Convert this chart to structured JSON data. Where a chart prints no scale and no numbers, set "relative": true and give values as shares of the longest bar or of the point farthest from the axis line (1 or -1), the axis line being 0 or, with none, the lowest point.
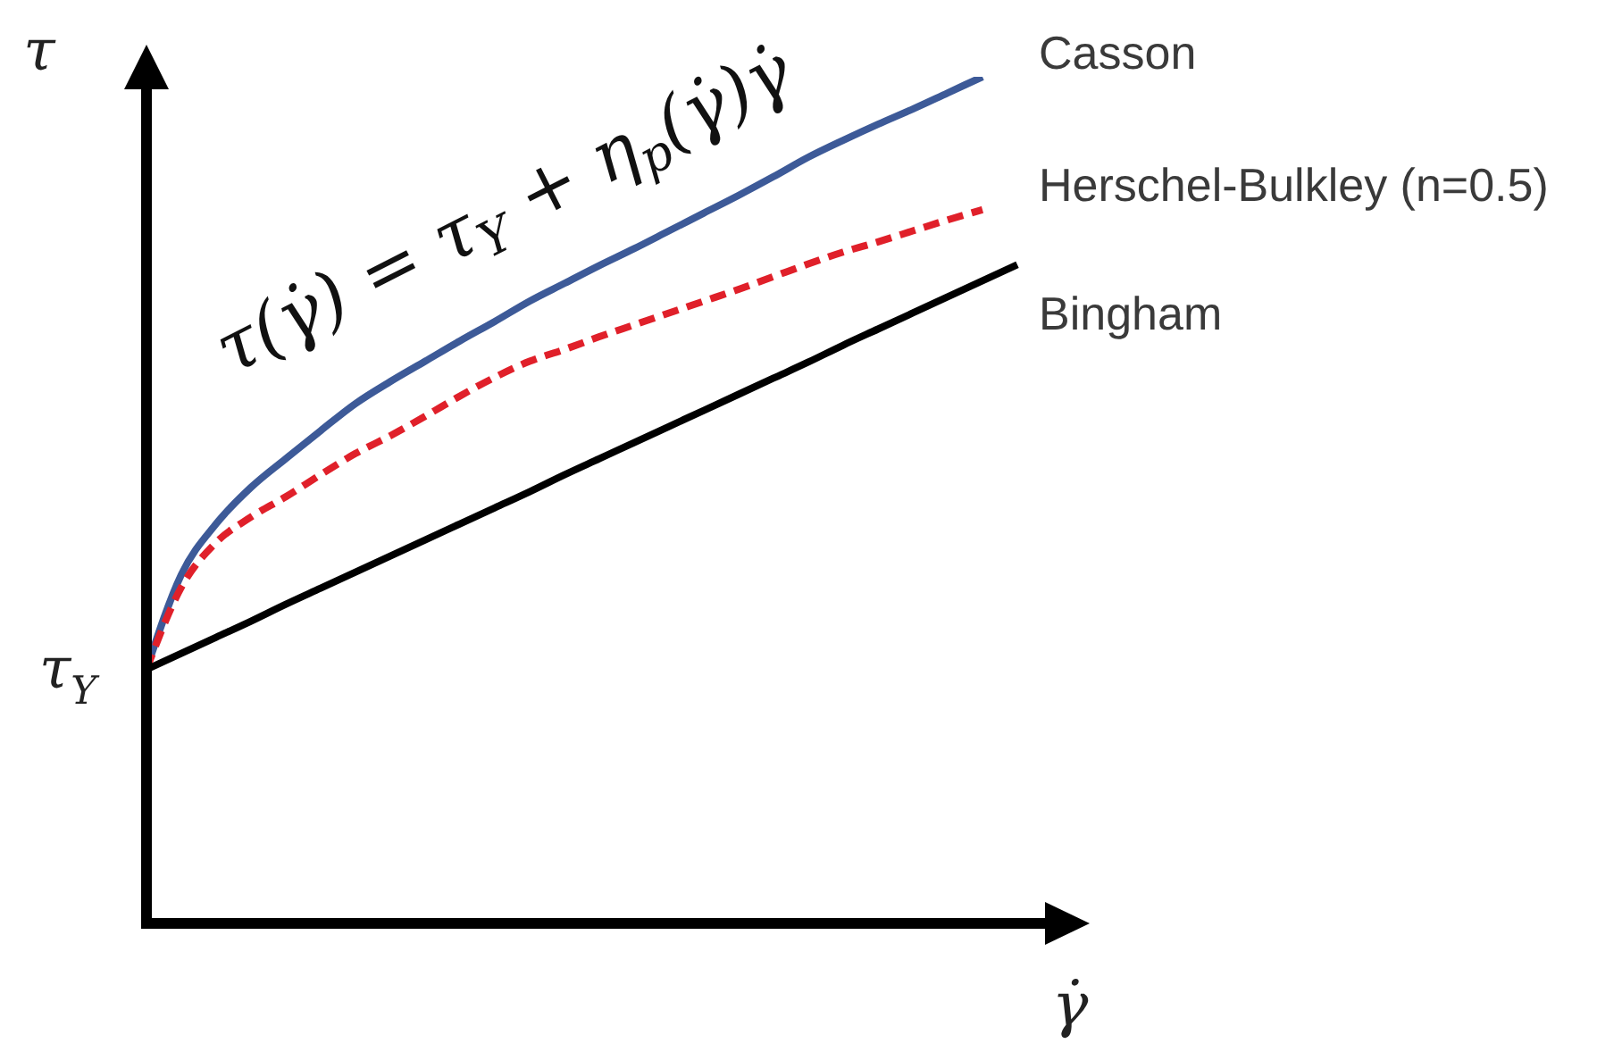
{
  "chart_data": {
    "type": "line",
    "relative": true,
    "marker": "none",
    "xlabel": "γ̇",
    "ylabel": "τ",
    "annotations": [
      "τ(γ̇) = τ$_{Y}$ + η$_{p}$(γ̇)γ̇",
      "τ$_{Y}$"
    ],
    "categories": [
      null,
      null,
      null,
      null,
      null,
      null,
      null,
      null,
      null,
      null,
      null,
      null,
      null,
      null,
      null,
      null,
      null,
      null,
      null,
      null,
      null,
      null,
      null,
      null,
      null,
      null
    ],
    "series": [
      {
        "name": "Casson",
        "color": "#3d5a98",
        "line_style": "solid",
        "values": [
          0.3,
          0.412,
          0.472,
          0.515,
          0.549,
          0.582,
          0.614,
          0.64,
          0.664,
          0.688,
          0.711,
          0.735,
          0.756,
          0.777,
          0.797,
          0.818,
          0.839,
          0.86,
          0.882,
          0.905,
          0.925,
          0.944,
          0.962,
          0.981,
          1.0,
          null
        ]
      },
      {
        "name": "Herschel-Bulkley (n=0.5)",
        "color": "#e0202a",
        "line_style": "dashed",
        "values": [
          0.3,
          0.397,
          0.45,
          0.48,
          0.504,
          0.53,
          0.555,
          0.576,
          0.599,
          0.623,
          0.645,
          0.664,
          0.678,
          0.693,
          0.707,
          0.721,
          0.735,
          0.749,
          0.764,
          0.779,
          0.793,
          0.805,
          0.818,
          0.831,
          0.843,
          null
        ]
      },
      {
        "name": "Bingham",
        "color": "#000000",
        "line_style": "solid",
        "values": [
          0.3,
          0.319,
          0.338,
          0.357,
          0.377,
          0.396,
          0.415,
          0.434,
          0.453,
          0.472,
          0.491,
          0.51,
          0.53,
          0.549,
          0.568,
          0.587,
          0.606,
          0.625,
          0.644,
          0.663,
          0.683,
          0.702,
          0.721,
          0.74,
          0.759,
          0.778
        ]
      }
    ]
  }
}
